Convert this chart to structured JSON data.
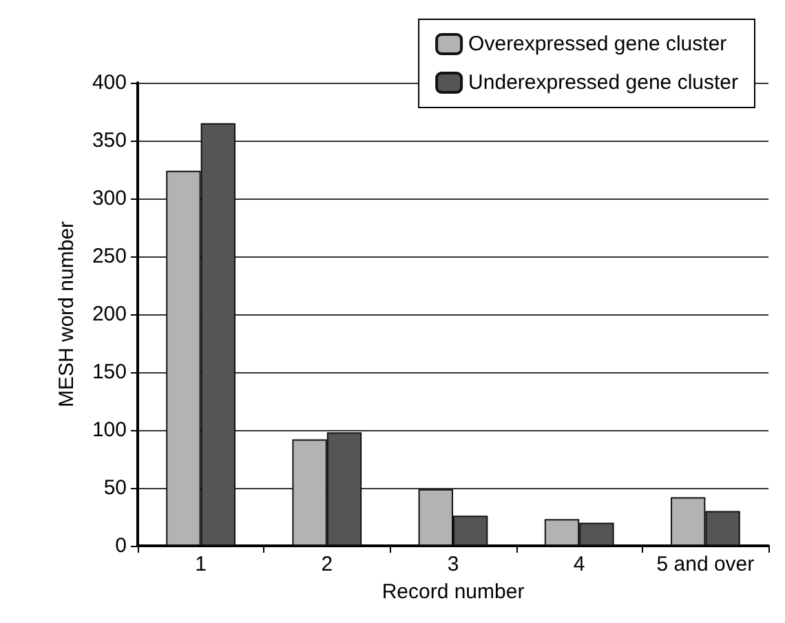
{
  "chart_data": {
    "type": "bar",
    "xlabel": "Record number",
    "ylabel": "MESH word number",
    "categories": [
      "1",
      "2",
      "3",
      "4",
      "5 and over"
    ],
    "series": [
      {
        "name": "Overexpressed gene cluster",
        "color": "#b3b3b3",
        "values": [
          324,
          92,
          49,
          23,
          42
        ]
      },
      {
        "name": "Underexpressed gene cluster",
        "color": "#555555",
        "values": [
          365,
          98,
          26,
          20,
          30
        ]
      }
    ],
    "ylim": [
      0,
      400
    ],
    "yticks": [
      0,
      50,
      100,
      150,
      200,
      250,
      300,
      350,
      400
    ],
    "grid": "y",
    "legend": "top right"
  }
}
